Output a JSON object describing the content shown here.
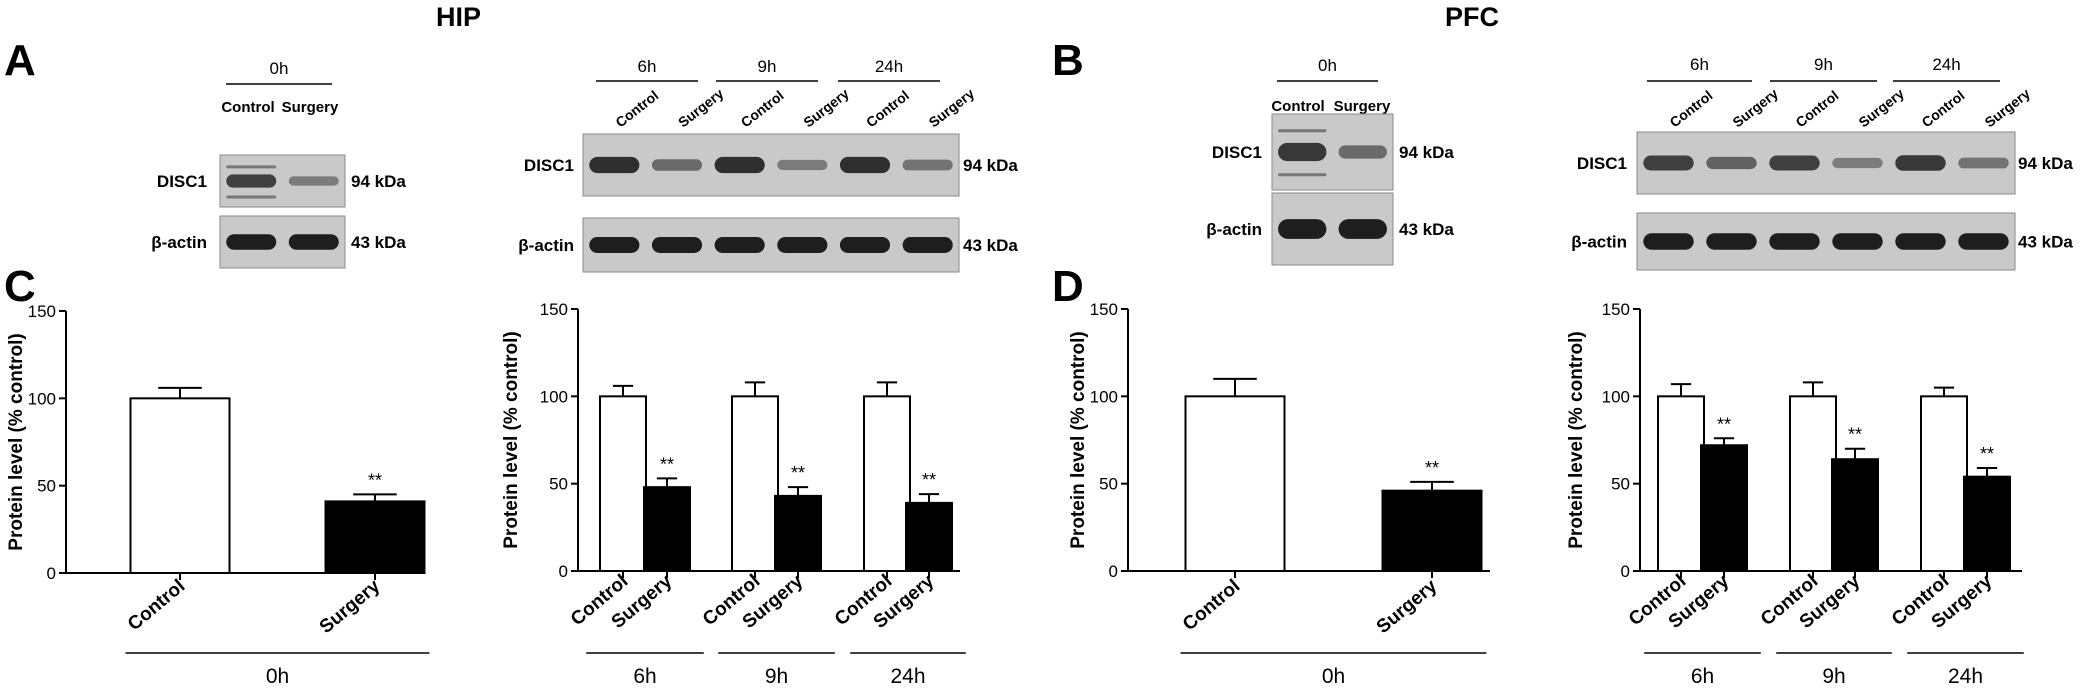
{
  "headers": {
    "left": "HIP",
    "right": "PFC"
  },
  "panel_letters": {
    "a": "A",
    "b": "B",
    "c": "C",
    "d": "D"
  },
  "blots": {
    "A_0h": {
      "time_label": "0h",
      "lanes": [
        "Control",
        "Surgery"
      ],
      "rows": [
        {
          "protein": "DISC1",
          "kda": "94 kDa",
          "band_intensity": [
            0.8,
            0.45
          ],
          "extra_bands": true
        },
        {
          "protein": "β-actin",
          "kda": "43 kDa",
          "band_intensity": [
            1.0,
            1.0
          ],
          "extra_bands": false
        }
      ]
    },
    "A_time": {
      "time_labels": [
        "6h",
        "9h",
        "24h"
      ],
      "lanes": [
        "Control",
        "Surgery",
        "Control",
        "Surgery",
        "Control",
        "Surgery"
      ],
      "rows": [
        {
          "protein": "DISC1",
          "kda": "94 kDa",
          "band_intensity": [
            0.9,
            0.55,
            0.9,
            0.45,
            0.9,
            0.5
          ],
          "extra_bands": false
        },
        {
          "protein": "β-actin",
          "kda": "43 kDa",
          "band_intensity": [
            1.0,
            1.0,
            1.0,
            1.0,
            1.0,
            1.0
          ],
          "extra_bands": false
        }
      ]
    },
    "B_0h": {
      "time_label": "0h",
      "lanes": [
        "Control",
        "Surgery"
      ],
      "rows": [
        {
          "protein": "DISC1",
          "kda": "94 kDa",
          "band_intensity": [
            0.85,
            0.55
          ],
          "extra_bands": true
        },
        {
          "protein": "β-actin",
          "kda": "43 kDa",
          "band_intensity": [
            1.0,
            1.0
          ],
          "extra_bands": false
        }
      ]
    },
    "B_time": {
      "time_labels": [
        "6h",
        "9h",
        "24h"
      ],
      "lanes": [
        "Control",
        "Surgery",
        "Control",
        "Surgery",
        "Control",
        "Surgery"
      ],
      "rows": [
        {
          "protein": "DISC1",
          "kda": "94 kDa",
          "band_intensity": [
            0.8,
            0.6,
            0.8,
            0.45,
            0.85,
            0.5
          ],
          "extra_bands": false
        },
        {
          "protein": "β-actin",
          "kda": "43 kDa",
          "band_intensity": [
            1.0,
            1.0,
            1.0,
            1.0,
            1.0,
            1.0
          ],
          "extra_bands": false
        }
      ]
    }
  },
  "chart_data": [
    {
      "id": "C_0h",
      "type": "bar",
      "ylabel": "Protein level (% control)",
      "ylim": [
        0,
        150
      ],
      "yticks": [
        0,
        50,
        100,
        150
      ],
      "categories": [
        "Control",
        "Surgery"
      ],
      "groups": [
        {
          "label": "0h",
          "size": 2
        }
      ],
      "values": [
        100,
        41
      ],
      "errors": [
        6,
        4
      ],
      "fills": [
        "#ffffff",
        "#000000"
      ],
      "significance": [
        "",
        "**"
      ]
    },
    {
      "id": "C_time",
      "type": "bar",
      "ylabel": "Protein level (% control)",
      "ylim": [
        0,
        150
      ],
      "yticks": [
        0,
        50,
        100,
        150
      ],
      "categories": [
        "Control",
        "Surgery",
        "Control",
        "Surgery",
        "Control",
        "Surgery"
      ],
      "groups": [
        {
          "label": "6h",
          "size": 2
        },
        {
          "label": "9h",
          "size": 2
        },
        {
          "label": "24h",
          "size": 2
        }
      ],
      "values": [
        100,
        48,
        100,
        43,
        100,
        39
      ],
      "errors": [
        6,
        5,
        8,
        5,
        8,
        5
      ],
      "fills": [
        "#ffffff",
        "#000000",
        "#ffffff",
        "#000000",
        "#ffffff",
        "#000000"
      ],
      "significance": [
        "",
        "**",
        "",
        "**",
        "",
        "**"
      ]
    },
    {
      "id": "D_0h",
      "type": "bar",
      "ylabel": "Protein level (% control)",
      "ylim": [
        0,
        150
      ],
      "yticks": [
        0,
        50,
        100,
        150
      ],
      "categories": [
        "Control",
        "Surgery"
      ],
      "groups": [
        {
          "label": "0h",
          "size": 2
        }
      ],
      "values": [
        100,
        46
      ],
      "errors": [
        10,
        5
      ],
      "fills": [
        "#ffffff",
        "#000000"
      ],
      "significance": [
        "",
        "**"
      ]
    },
    {
      "id": "D_time",
      "type": "bar",
      "ylabel": "Protein level (% control)",
      "ylim": [
        0,
        150
      ],
      "yticks": [
        0,
        50,
        100,
        150
      ],
      "categories": [
        "Control",
        "Surgery",
        "Control",
        "Surgery",
        "Control",
        "Surgery"
      ],
      "groups": [
        {
          "label": "6h",
          "size": 2
        },
        {
          "label": "9h",
          "size": 2
        },
        {
          "label": "24h",
          "size": 2
        }
      ],
      "values": [
        100,
        72,
        100,
        64,
        100,
        54
      ],
      "errors": [
        7,
        4,
        8,
        6,
        5,
        5
      ],
      "fills": [
        "#ffffff",
        "#000000",
        "#ffffff",
        "#000000",
        "#ffffff",
        "#000000"
      ],
      "significance": [
        "",
        "**",
        "",
        "**",
        "",
        "**"
      ]
    }
  ]
}
